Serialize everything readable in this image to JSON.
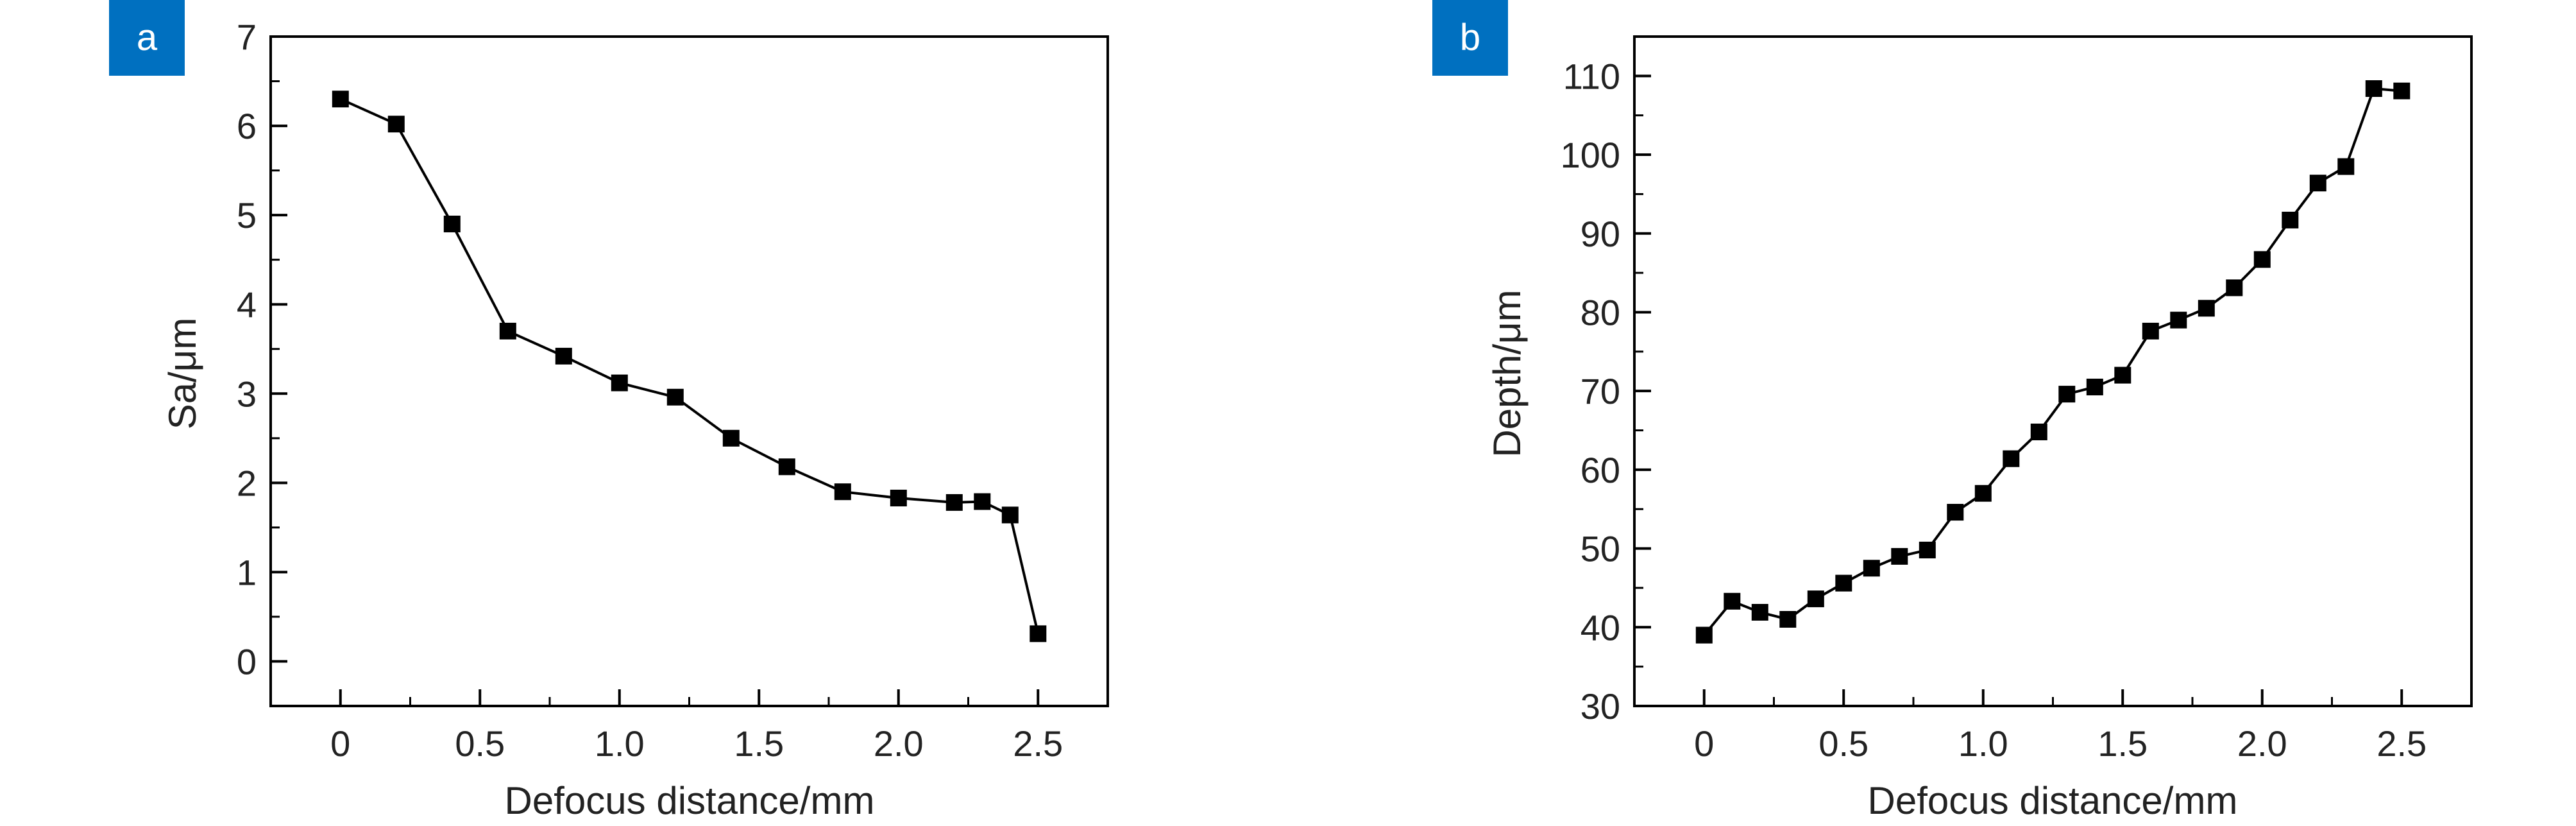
{
  "colors": {
    "panel_badge": "#0070C0",
    "series": "#000000",
    "axis": "#000000"
  },
  "chart_data": [
    {
      "type": "line",
      "panel_label": "a",
      "xlabel": "Defocus distance/mm",
      "ylabel": "Sa/μm",
      "xlim": [
        -0.25,
        2.75
      ],
      "ylim": [
        -0.5,
        7
      ],
      "x_ticks": [
        "0",
        "0.5",
        "1.0",
        "1.5",
        "2.0",
        "2.5"
      ],
      "y_ticks": [
        "0",
        "1",
        "2",
        "3",
        "4",
        "5",
        "6",
        "7"
      ],
      "grid": false,
      "legend": "none",
      "marker": "square",
      "series": [
        {
          "x": [
            0,
            0.2,
            0.4,
            0.6,
            0.8,
            1.0,
            1.2,
            1.4,
            1.6,
            1.8,
            2.0,
            2.2,
            2.3,
            2.4,
            2.5
          ],
          "values": [
            6.3,
            6.02,
            4.9,
            3.7,
            3.42,
            3.12,
            2.96,
            2.5,
            2.18,
            1.9,
            1.83,
            1.78,
            1.79,
            1.64,
            0.31
          ]
        }
      ]
    },
    {
      "type": "line",
      "panel_label": "b",
      "xlabel": "Defocus distance/mm",
      "ylabel": "Depth/μm",
      "xlim": [
        -0.25,
        2.75
      ],
      "ylim": [
        30,
        115
      ],
      "x_ticks": [
        "0",
        "0.5",
        "1.0",
        "1.5",
        "2.0",
        "2.5"
      ],
      "y_ticks": [
        "30",
        "40",
        "50",
        "60",
        "70",
        "80",
        "90",
        "100",
        "110"
      ],
      "grid": false,
      "legend": "none",
      "marker": "square",
      "series": [
        {
          "x": [
            0,
            0.1,
            0.2,
            0.3,
            0.4,
            0.5,
            0.6,
            0.7,
            0.8,
            0.9,
            1.0,
            1.1,
            1.2,
            1.3,
            1.4,
            1.5,
            1.6,
            1.7,
            1.8,
            1.9,
            2.0,
            2.1,
            2.2,
            2.3,
            2.4,
            2.5
          ],
          "values": [
            39,
            43.3,
            41.9,
            41,
            43.6,
            45.6,
            47.5,
            49,
            49.8,
            54.6,
            57,
            61.4,
            64.8,
            69.6,
            70.5,
            72,
            77.6,
            79,
            80.5,
            83.1,
            86.7,
            91.7,
            96.4,
            98.5,
            108.4,
            108.1
          ]
        }
      ]
    }
  ]
}
